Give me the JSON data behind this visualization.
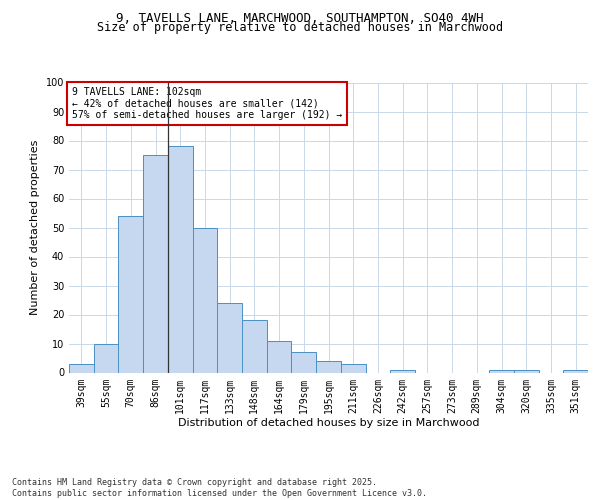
{
  "title_line1": "9, TAVELLS LANE, MARCHWOOD, SOUTHAMPTON, SO40 4WH",
  "title_line2": "Size of property relative to detached houses in Marchwood",
  "xlabel": "Distribution of detached houses by size in Marchwood",
  "ylabel": "Number of detached properties",
  "categories": [
    "39sqm",
    "55sqm",
    "70sqm",
    "86sqm",
    "101sqm",
    "117sqm",
    "133sqm",
    "148sqm",
    "164sqm",
    "179sqm",
    "195sqm",
    "211sqm",
    "226sqm",
    "242sqm",
    "257sqm",
    "273sqm",
    "289sqm",
    "304sqm",
    "320sqm",
    "335sqm",
    "351sqm"
  ],
  "values": [
    3,
    10,
    54,
    75,
    78,
    50,
    24,
    18,
    11,
    7,
    4,
    3,
    0,
    1,
    0,
    0,
    0,
    1,
    1,
    0,
    1
  ],
  "bar_color": "#c5d8f0",
  "bar_edge_color": "#4a90c4",
  "vline_index": 4,
  "vline_color": "#333333",
  "annotation_text": "9 TAVELLS LANE: 102sqm\n← 42% of detached houses are smaller (142)\n57% of semi-detached houses are larger (192) →",
  "annotation_box_color": "#ffffff",
  "annotation_box_edge_color": "#cc0000",
  "ylim": [
    0,
    100
  ],
  "yticks": [
    0,
    10,
    20,
    30,
    40,
    50,
    60,
    70,
    80,
    90,
    100
  ],
  "background_color": "#ffffff",
  "grid_color": "#c8d8e8",
  "footer_text": "Contains HM Land Registry data © Crown copyright and database right 2025.\nContains public sector information licensed under the Open Government Licence v3.0.",
  "title_fontsize": 9,
  "subtitle_fontsize": 8.5,
  "axis_label_fontsize": 8,
  "tick_fontsize": 7,
  "annotation_fontsize": 7,
  "footer_fontsize": 6
}
